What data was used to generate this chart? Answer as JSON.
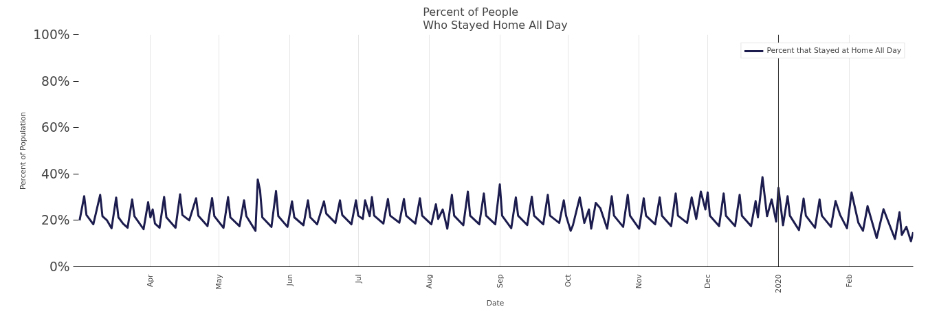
{
  "chart_data": {
    "type": "line",
    "title": "Percent of People\nWho Stayed Home All Day",
    "xlabel": "Date",
    "ylabel": "Percent of Population",
    "x": [
      "2019-03-01",
      "2019-03-03",
      "2019-03-04",
      "2019-03-07",
      "2019-03-10",
      "2019-03-11",
      "2019-03-13",
      "2019-03-15",
      "2019-03-17",
      "2019-03-18",
      "2019-03-20",
      "2019-03-22",
      "2019-03-24",
      "2019-03-25",
      "2019-03-29",
      "2019-03-31",
      "2019-04-01",
      "2019-04-02",
      "2019-04-03",
      "2019-04-05",
      "2019-04-07",
      "2019-04-08",
      "2019-04-12",
      "2019-04-14",
      "2019-04-15",
      "2019-04-18",
      "2019-04-21",
      "2019-04-22",
      "2019-04-26",
      "2019-04-28",
      "2019-04-29",
      "2019-05-03",
      "2019-05-05",
      "2019-05-06",
      "2019-05-10",
      "2019-05-12",
      "2019-05-13",
      "2019-05-17",
      "2019-05-18",
      "2019-05-19",
      "2019-05-20",
      "2019-05-24",
      "2019-05-26",
      "2019-05-27",
      "2019-05-31",
      "2019-06-02",
      "2019-06-03",
      "2019-06-07",
      "2019-06-09",
      "2019-06-10",
      "2019-06-13",
      "2019-06-16",
      "2019-06-17",
      "2019-06-21",
      "2019-06-23",
      "2019-06-24",
      "2019-06-28",
      "2019-06-30",
      "2019-07-01",
      "2019-07-03",
      "2019-07-04",
      "2019-07-06",
      "2019-07-07",
      "2019-07-08",
      "2019-07-12",
      "2019-07-14",
      "2019-07-15",
      "2019-07-19",
      "2019-07-21",
      "2019-07-22",
      "2019-07-26",
      "2019-07-28",
      "2019-07-29",
      "2019-08-02",
      "2019-08-04",
      "2019-08-05",
      "2019-08-07",
      "2019-08-09",
      "2019-08-11",
      "2019-08-12",
      "2019-08-16",
      "2019-08-18",
      "2019-08-19",
      "2019-08-23",
      "2019-08-25",
      "2019-08-26",
      "2019-08-30",
      "2019-09-01",
      "2019-09-02",
      "2019-09-06",
      "2019-09-08",
      "2019-09-09",
      "2019-09-13",
      "2019-09-15",
      "2019-09-16",
      "2019-09-20",
      "2019-09-22",
      "2019-09-23",
      "2019-09-27",
      "2019-09-29",
      "2019-09-30",
      "2019-10-02",
      "2019-10-03",
      "2019-10-06",
      "2019-10-08",
      "2019-10-10",
      "2019-10-11",
      "2019-10-13",
      "2019-10-15",
      "2019-10-18",
      "2019-10-20",
      "2019-10-21",
      "2019-10-25",
      "2019-10-27",
      "2019-10-28",
      "2019-11-01",
      "2019-11-03",
      "2019-11-04",
      "2019-11-08",
      "2019-11-10",
      "2019-11-11",
      "2019-11-15",
      "2019-11-17",
      "2019-11-18",
      "2019-11-22",
      "2019-11-24",
      "2019-11-26",
      "2019-11-28",
      "2019-11-30",
      "2019-12-01",
      "2019-12-02",
      "2019-12-06",
      "2019-12-08",
      "2019-12-09",
      "2019-12-13",
      "2019-12-15",
      "2019-12-16",
      "2019-12-20",
      "2019-12-22",
      "2019-12-23",
      "2019-12-25",
      "2019-12-27",
      "2019-12-29",
      "2019-12-31",
      "2020-01-01",
      "2020-01-03",
      "2020-01-05",
      "2020-01-06",
      "2020-01-10",
      "2020-01-12",
      "2020-01-13",
      "2020-01-17",
      "2020-01-19",
      "2020-01-20",
      "2020-01-24",
      "2020-01-26",
      "2020-01-28",
      "2020-01-31",
      "2020-02-02",
      "2020-02-05",
      "2020-02-07",
      "2020-02-09",
      "2020-02-13",
      "2020-02-16",
      "2020-02-21",
      "2020-02-23",
      "2020-02-24",
      "2020-02-26",
      "2020-02-28",
      "2020-02-29"
    ],
    "series": [
      {
        "name": "Percent that Stayed at Home All Day",
        "color": "#1c1c4e",
        "values": [
          20,
          30.4,
          22.3,
          18.3,
          31,
          21.8,
          20,
          16.6,
          29.8,
          21.3,
          18.6,
          16.8,
          29,
          21.8,
          16.2,
          27.8,
          21.3,
          24.7,
          18.6,
          16.8,
          30.1,
          21.3,
          16.8,
          31.2,
          22.3,
          20,
          29.5,
          22,
          17.5,
          29.6,
          21.8,
          16.8,
          30,
          21.3,
          17.5,
          28.6,
          21.8,
          15.5,
          37.6,
          33,
          21.3,
          17.2,
          32.6,
          21.8,
          17.2,
          28.2,
          21.3,
          17.9,
          28.6,
          21.3,
          18.3,
          28.2,
          22.9,
          18.9,
          28.6,
          22.3,
          18.3,
          28.6,
          22,
          20.6,
          28.6,
          21.8,
          30,
          22,
          18.6,
          29.2,
          22,
          19,
          29.2,
          22,
          18.6,
          29.5,
          22,
          18.3,
          26.9,
          20.6,
          24.7,
          16.4,
          31,
          22,
          17.9,
          32.4,
          22,
          18.3,
          31.6,
          22,
          18.3,
          35.5,
          22,
          16.6,
          29.9,
          22,
          18,
          30.2,
          22,
          18.3,
          31,
          22,
          18.9,
          28.6,
          22,
          15.5,
          17.9,
          29.9,
          18.9,
          24.7,
          16.4,
          27.5,
          25.2,
          16.4,
          30.4,
          22,
          17.2,
          31,
          22,
          16.4,
          29.5,
          22,
          18.3,
          29.9,
          22,
          17.5,
          31.6,
          22,
          18.9,
          29.9,
          20.6,
          32.4,
          24.7,
          32,
          22,
          17.5,
          31.6,
          22,
          17.5,
          31,
          22,
          17.5,
          28.3,
          21.3,
          38.6,
          21.8,
          29,
          19.5,
          34,
          17.9,
          30.4,
          22,
          15.8,
          29.4,
          22,
          16.8,
          29,
          22,
          17.2,
          28.3,
          22.3,
          16.6,
          32,
          18.9,
          15.5,
          26.1,
          12.4,
          24.8,
          12,
          23.5,
          13.7,
          17.2,
          11,
          14.9
        ]
      }
    ],
    "xlim": [
      "2019-02-28",
      "2020-02-29"
    ],
    "xticks": [
      {
        "value": "2019-04-01",
        "label": "Apr"
      },
      {
        "value": "2019-05-01",
        "label": "May"
      },
      {
        "value": "2019-06-01",
        "label": "Jun"
      },
      {
        "value": "2019-07-01",
        "label": "Jul"
      },
      {
        "value": "2019-08-01",
        "label": "Aug"
      },
      {
        "value": "2019-09-01",
        "label": "Sep"
      },
      {
        "value": "2019-10-01",
        "label": "Oct"
      },
      {
        "value": "2019-11-01",
        "label": "Nov"
      },
      {
        "value": "2019-12-01",
        "label": "Dec"
      },
      {
        "value": "2020-01-01",
        "label": "2020"
      },
      {
        "value": "2020-02-01",
        "label": "Feb"
      }
    ],
    "ylim": [
      0,
      100
    ],
    "yticks": [
      {
        "value": 0,
        "label": "0%"
      },
      {
        "value": 20,
        "label": "20%"
      },
      {
        "value": 40,
        "label": "40%"
      },
      {
        "value": 60,
        "label": "60%"
      },
      {
        "value": 80,
        "label": "80%"
      },
      {
        "value": 100,
        "label": "100%"
      }
    ],
    "ref_lines": [
      {
        "axis": "x",
        "value": "2020-01-01",
        "color": "#333333"
      }
    ],
    "grid": "x",
    "legend": "top right",
    "line_style": "solid",
    "marker": "none"
  }
}
